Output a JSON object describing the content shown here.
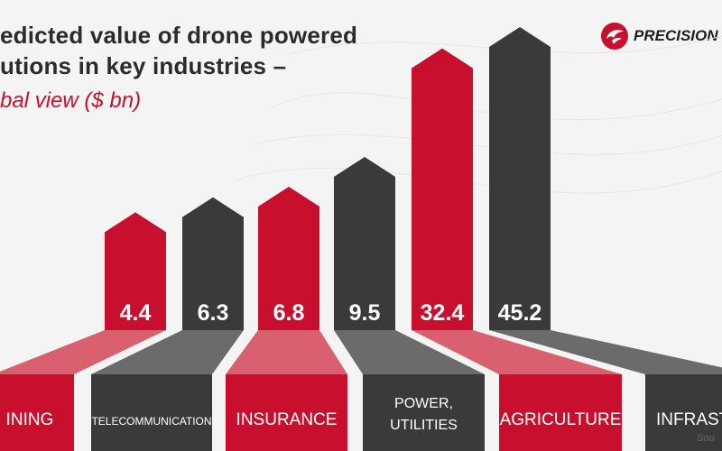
{
  "title_lines": [
    "edicted value of drone powered",
    "utions in key industries –"
  ],
  "subtitle": "bal view ($ bn)",
  "logo": {
    "text": "PRECISION",
    "icon": "precision-hawk-logo-icon"
  },
  "source": "Sou",
  "colors": {
    "red": "#c8102e",
    "dark": "#3a3a3a",
    "label_text": "#ffffff",
    "background": "#f4f4f4"
  },
  "chart_data": {
    "type": "bar",
    "categories": [
      "INING",
      "TELECOMMUNICATION",
      "INSURANCE",
      "POWER, UTILITIES",
      "AGRICULTURE",
      "INFRASTRU"
    ],
    "values": [
      4.4,
      6.3,
      6.8,
      9.5,
      32.4,
      45.2
    ],
    "value_labels": [
      "4.4",
      "6.3",
      "6.8",
      "9.5",
      "32.4",
      "45.2"
    ],
    "bar_colors": [
      "red",
      "dark",
      "red",
      "dark",
      "red",
      "dark"
    ],
    "title": "edicted value of drone powered utions in key industries – bal view ($ bn)",
    "grid": false,
    "legend": "none"
  }
}
